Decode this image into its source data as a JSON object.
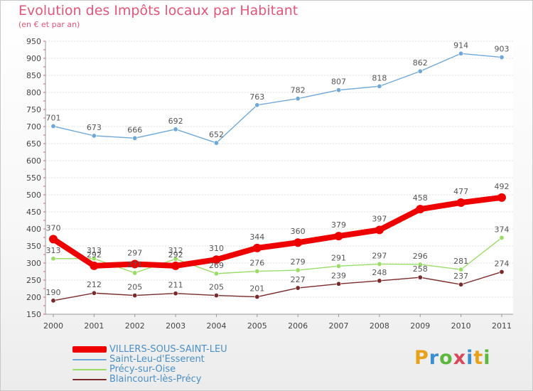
{
  "title": "Evolution des Impôts locaux par Habitant",
  "subtitle": "(en € et par an)",
  "logo": {
    "text": "Proxiti",
    "colors": [
      "#e8a21a",
      "#3a8fd0",
      "#5cb83a",
      "#d9475a",
      "#3a8fd0",
      "#e8a21a",
      "#5cb83a"
    ]
  },
  "chart_data": {
    "type": "line",
    "x": [
      "2000",
      "2001",
      "2002",
      "2003",
      "2004",
      "2005",
      "2006",
      "2007",
      "2008",
      "2009",
      "2010",
      "2011"
    ],
    "ylim": [
      150,
      950
    ],
    "yticks": [
      "150",
      "200",
      "250",
      "300",
      "350",
      "400",
      "450",
      "500",
      "550",
      "600",
      "650",
      "700",
      "750",
      "800",
      "850",
      "900",
      "950"
    ],
    "grid": "horizontal",
    "legend_position": "bottom-left",
    "series": [
      {
        "name": "VILLERS-SOUS-SAINT-LEU",
        "color": "#ee0000",
        "values": [
          370,
          292,
          297,
          292,
          310,
          344,
          360,
          379,
          397,
          458,
          477,
          492
        ],
        "labels": [
          "370",
          "292",
          "297",
          "292",
          "310",
          "344",
          "360",
          "379",
          "397",
          "458",
          "477",
          "492"
        ]
      },
      {
        "name": "Saint-Leu-d'Esserent",
        "color": "#6fa8d8",
        "values": [
          701,
          673,
          666,
          692,
          652,
          763,
          782,
          807,
          818,
          862,
          914,
          903
        ],
        "labels": [
          "701",
          "673",
          "666",
          "692",
          "652",
          "763",
          "782",
          "807",
          "818",
          "862",
          "914",
          "903"
        ]
      },
      {
        "name": "Précy-sur-Oise",
        "color": "#99dd66",
        "values": [
          313,
          313,
          271,
          312,
          269,
          276,
          279,
          291,
          297,
          296,
          281,
          374
        ],
        "labels": [
          "313",
          "313",
          "271",
          "312",
          "269",
          "276",
          "279",
          "291",
          "297",
          "296",
          "281",
          "374"
        ]
      },
      {
        "name": "Blaincourt-lès-Précy",
        "color": "#7a2a2a",
        "values": [
          190,
          212,
          205,
          211,
          205,
          201,
          227,
          239,
          248,
          258,
          237,
          274
        ],
        "labels": [
          "190",
          "212",
          "205",
          "211",
          "205",
          "201",
          "227",
          "239",
          "248",
          "258",
          "237",
          "274"
        ]
      }
    ]
  }
}
